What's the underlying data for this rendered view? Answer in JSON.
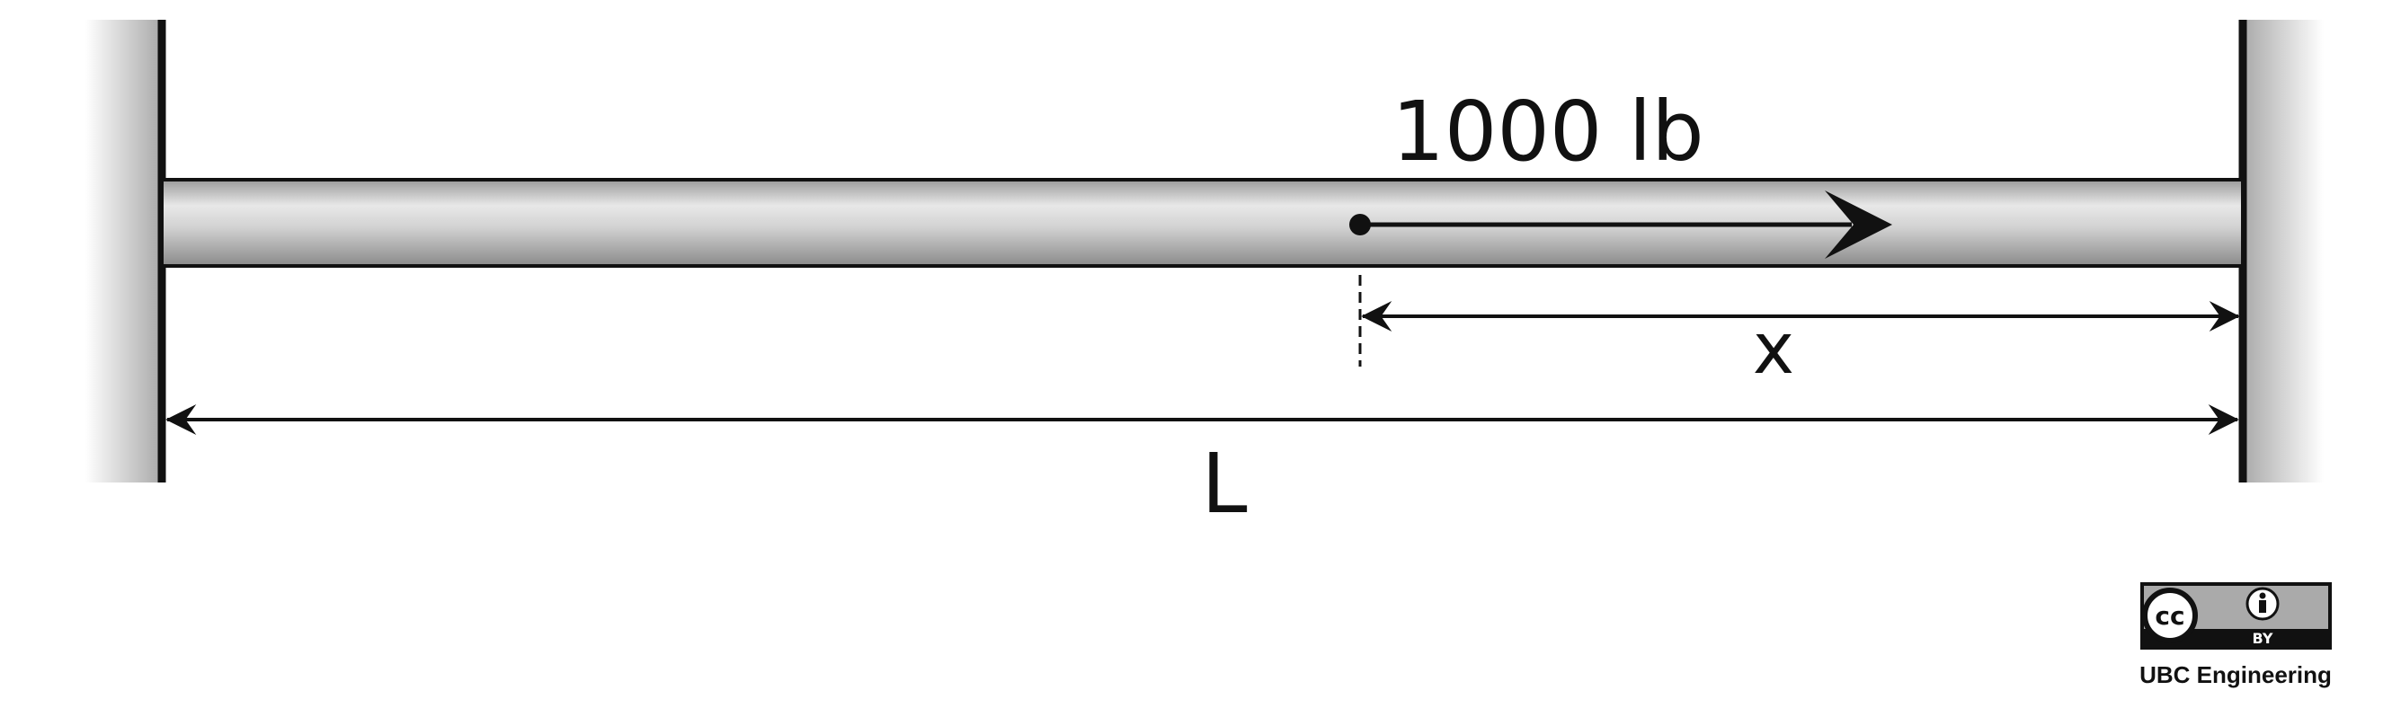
{
  "diagram": {
    "force_label": "1000 lb",
    "dimension_x_label": "x",
    "dimension_total_label": "L"
  },
  "license": {
    "cc_text": "cc",
    "by_text": "BY",
    "attribution": "UBC Engineering"
  },
  "colors": {
    "stroke": "#111111",
    "wall_shade": "#b8b8b8",
    "rod_light": "#e9e9e9",
    "rod_dark": "#8f8f8f",
    "badge_gray": "#aaaaaa"
  }
}
